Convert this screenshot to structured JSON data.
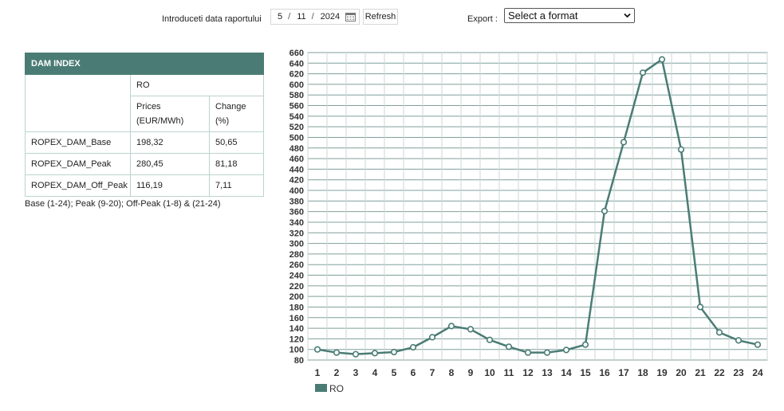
{
  "report_form": {
    "date_label": "Introduceti data raportului",
    "date_month": "5",
    "date_day": "11",
    "date_year": "2024",
    "refresh_label": "Refresh",
    "export_label": "Export :",
    "export_selected": "Select a format"
  },
  "dam_table": {
    "title": "DAM INDEX",
    "region": "RO",
    "col_prices": [
      "Prices",
      "(EUR/MWh)"
    ],
    "col_change": [
      "Change",
      "(%)"
    ],
    "rows": [
      {
        "name": "ROPEX_DAM_Base",
        "price": "198,32",
        "change": "50,65"
      },
      {
        "name": "ROPEX_DAM_Peak",
        "price": "280,45",
        "change": "81,18"
      },
      {
        "name": "ROPEX_DAM_Off_Peak",
        "price": "116,19",
        "change": "7,11"
      }
    ],
    "note": "Base (1-24); Peak (9-20); Off-Peak (1-8) & (21-24)"
  },
  "colors": {
    "header_bg": "#4a7c75",
    "series_line": "#4a7c75",
    "grid": "#7f9f9b"
  },
  "chart_data": {
    "type": "line",
    "title": "",
    "xlabel": "",
    "ylabel": "",
    "ylim": [
      80,
      660
    ],
    "ytick_step": 20,
    "x": [
      1,
      2,
      3,
      4,
      5,
      6,
      7,
      8,
      9,
      10,
      11,
      12,
      13,
      14,
      15,
      16,
      17,
      18,
      19,
      20,
      21,
      22,
      23,
      24
    ],
    "series": [
      {
        "name": "RO",
        "values": [
          100,
          94,
          91,
          93,
          95,
          104,
          123,
          144,
          138,
          118,
          105,
          94,
          94,
          99,
          109,
          361,
          491,
          622,
          647,
          477,
          180,
          132,
          117,
          109
        ]
      }
    ],
    "grid": true,
    "legend": "bottom-left"
  }
}
